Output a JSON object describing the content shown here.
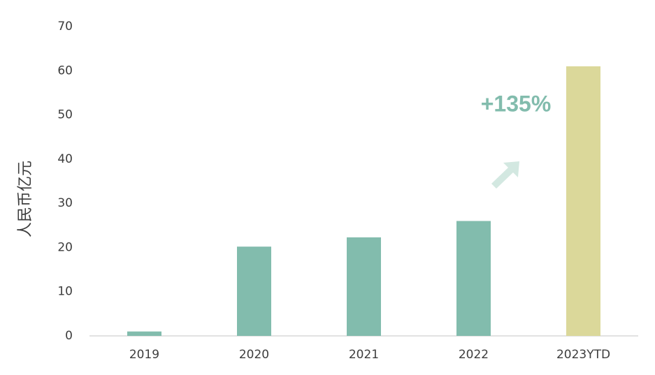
{
  "chart_data": {
    "type": "bar",
    "y_label": "人民币亿元",
    "categories": [
      "2019",
      "2020",
      "2021",
      "2022",
      "2023YTD"
    ],
    "values": [
      1,
      20.2,
      22.3,
      26,
      61
    ],
    "colors": [
      "#82bcad",
      "#82bcad",
      "#82bcad",
      "#82bcad",
      "#dbd89a"
    ],
    "ylim": [
      0,
      70
    ],
    "yticks": [
      0,
      10,
      20,
      30,
      40,
      50,
      60,
      70
    ],
    "annotation": "+135%"
  }
}
